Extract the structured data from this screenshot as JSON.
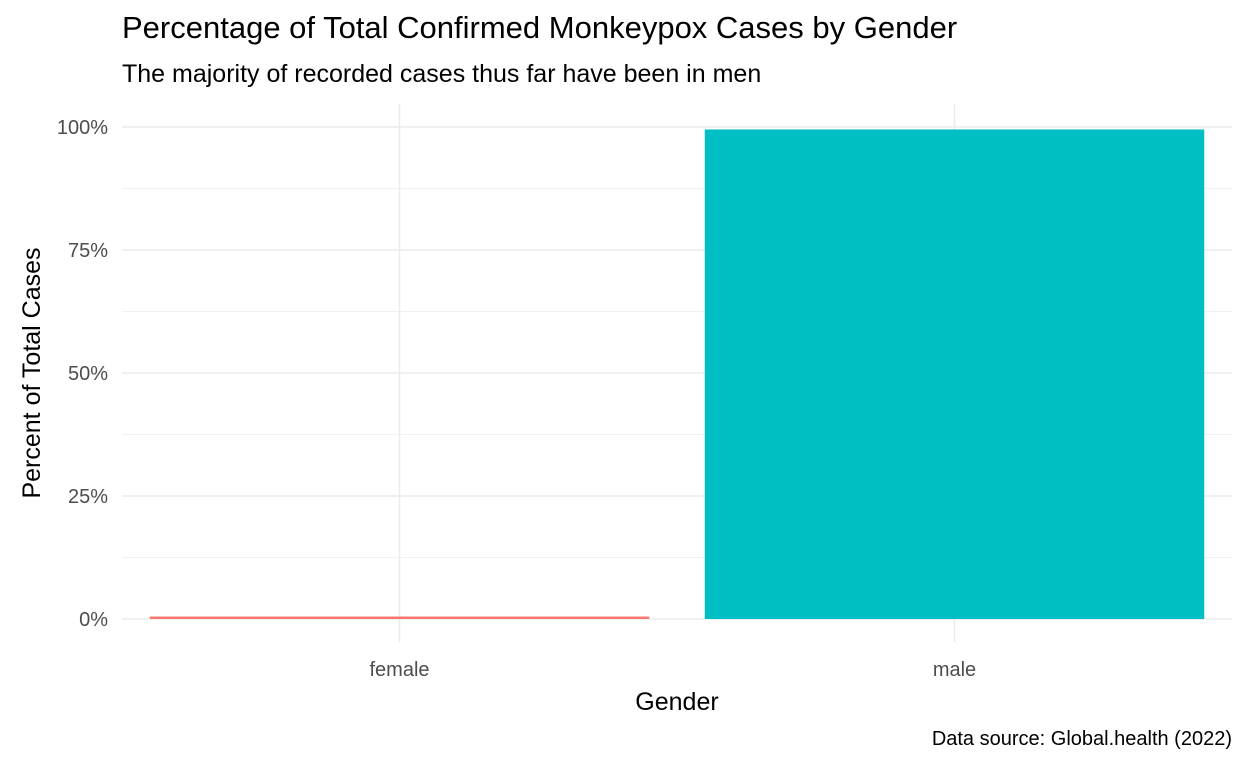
{
  "chart_data": {
    "type": "bar",
    "title": "Percentage of Total Confirmed Monkeypox Cases by Gender",
    "subtitle": "The majority of recorded cases thus far have been in men",
    "caption": "Data source: Global.health (2022)",
    "xlabel": "Gender",
    "ylabel": "Percent of Total Cases",
    "categories": [
      "female",
      "male"
    ],
    "values": [
      0.5,
      99.5
    ],
    "colors": [
      "#F8766D",
      "#00BFC4"
    ],
    "ylim": [
      0,
      100
    ],
    "yticks": [
      0,
      25,
      50,
      75,
      100
    ],
    "ytick_labels": [
      "0%",
      "25%",
      "50%",
      "75%",
      "100%"
    ],
    "grid": true,
    "legend": "none"
  }
}
